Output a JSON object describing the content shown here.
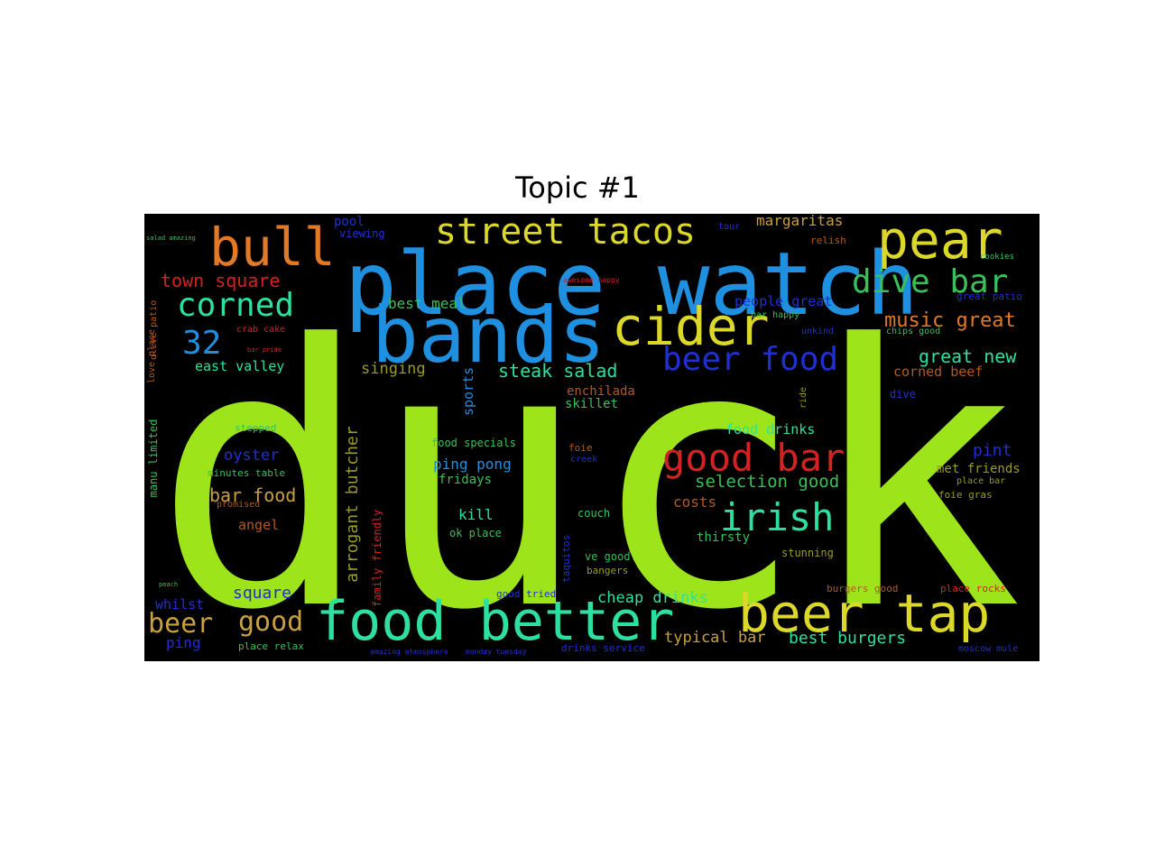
{
  "title": "Topic #1",
  "colors": {
    "lime": "#9de51a",
    "blue": "#1f8fe0",
    "orange": "#e07a28",
    "yellow": "#dcd82a",
    "teal": "#2ee0a0",
    "red": "#d42222",
    "navy": "#2030d0",
    "olive": "#9a9a2a",
    "green": "#3bbf5a",
    "brown": "#b05a20",
    "tan": "#c7a040"
  },
  "words": [
    {
      "id": "w-duck",
      "text": "duck",
      "color": "lime"
    },
    {
      "id": "w-place-watch",
      "text": "place watch",
      "color": "blue"
    },
    {
      "id": "w-bands",
      "text": "bands",
      "color": "blue"
    },
    {
      "id": "w-bull",
      "text": "bull",
      "color": "orange"
    },
    {
      "id": "w-pear",
      "text": "pear",
      "color": "yellow"
    },
    {
      "id": "w-street-tacos",
      "text": "street tacos",
      "color": "yellow"
    },
    {
      "id": "w-cider",
      "text": "cider",
      "color": "yellow"
    },
    {
      "id": "w-food-better",
      "text": "food better",
      "color": "teal"
    },
    {
      "id": "w-beer-tap",
      "text": "beer tap",
      "color": "yellow"
    },
    {
      "id": "w-dive-bar",
      "text": "dive bar",
      "color": "green"
    },
    {
      "id": "w-corned",
      "text": "corned",
      "color": "teal"
    },
    {
      "id": "w-32",
      "text": "32",
      "color": "blue"
    },
    {
      "id": "w-beer-food",
      "text": "beer food",
      "color": "navy"
    },
    {
      "id": "w-good-bar",
      "text": "good bar",
      "color": "red"
    },
    {
      "id": "w-irish",
      "text": "irish",
      "color": "teal"
    },
    {
      "id": "w-music-great",
      "text": "music great",
      "color": "orange"
    },
    {
      "id": "w-great-new",
      "text": "great new",
      "color": "teal"
    },
    {
      "id": "w-town-square",
      "text": "town square",
      "color": "red"
    },
    {
      "id": "w-margaritas",
      "text": "margaritas",
      "color": "tan"
    },
    {
      "id": "w-pool",
      "text": "pool",
      "color": "navy"
    },
    {
      "id": "w-viewing",
      "text": "viewing",
      "color": "navy"
    },
    {
      "id": "w-relish",
      "text": "relish",
      "color": "brown"
    },
    {
      "id": "w-tour",
      "text": "tour",
      "color": "navy"
    },
    {
      "id": "w-best-meal",
      "text": "best meal",
      "color": "green"
    },
    {
      "id": "w-people-great",
      "text": "people great",
      "color": "navy"
    },
    {
      "id": "w-bar-happy",
      "text": "bar happy",
      "color": "green"
    },
    {
      "id": "w-unkind",
      "text": "unkind",
      "color": "navy"
    },
    {
      "id": "w-chips-good",
      "text": "chips good",
      "color": "green"
    },
    {
      "id": "w-corned-beef",
      "text": "corned beef",
      "color": "brown"
    },
    {
      "id": "w-east-valley",
      "text": "east valley",
      "color": "teal"
    },
    {
      "id": "w-singing",
      "text": "singing",
      "color": "olive"
    },
    {
      "id": "w-steak-salad",
      "text": "steak salad",
      "color": "teal"
    },
    {
      "id": "w-sports",
      "text": "sports",
      "color": "blue"
    },
    {
      "id": "w-enchilada",
      "text": "enchilada",
      "color": "brown"
    },
    {
      "id": "w-skillet",
      "text": "skillet",
      "color": "green"
    },
    {
      "id": "w-dive",
      "text": "dive",
      "color": "navy"
    },
    {
      "id": "w-crab-cake",
      "text": "crab cake",
      "color": "red"
    },
    {
      "id": "w-olive-patio",
      "text": "olive patio",
      "color": "brown"
    },
    {
      "id": "w-love-place",
      "text": "love place",
      "color": "brown"
    },
    {
      "id": "w-food-drinks",
      "text": "food drinks",
      "color": "teal"
    },
    {
      "id": "w-pint",
      "text": "pint",
      "color": "navy"
    },
    {
      "id": "w-met-friends",
      "text": "met friends",
      "color": "olive"
    },
    {
      "id": "w-oyster",
      "text": "oyster",
      "color": "navy"
    },
    {
      "id": "w-arrogant-butcher",
      "text": "arrogant butcher",
      "color": "olive"
    },
    {
      "id": "w-food-specials",
      "text": "food specials",
      "color": "green"
    },
    {
      "id": "w-ping-pong",
      "text": "ping pong",
      "color": "blue"
    },
    {
      "id": "w-fridays",
      "text": "fridays",
      "color": "green"
    },
    {
      "id": "w-bar-food",
      "text": "bar food",
      "color": "tan"
    },
    {
      "id": "w-selection-good",
      "text": "selection good",
      "color": "green"
    },
    {
      "id": "w-costs",
      "text": "costs",
      "color": "brown"
    },
    {
      "id": "w-angel",
      "text": "angel",
      "color": "brown"
    },
    {
      "id": "w-kill",
      "text": "kill",
      "color": "teal"
    },
    {
      "id": "w-ok-place",
      "text": "ok place",
      "color": "green"
    },
    {
      "id": "w-couch",
      "text": "couch",
      "color": "green"
    },
    {
      "id": "w-thirsty",
      "text": "thirsty",
      "color": "green"
    },
    {
      "id": "w-foie-gras",
      "text": "foie gras",
      "color": "olive"
    },
    {
      "id": "w-place-bar",
      "text": "place bar",
      "color": "olive"
    },
    {
      "id": "w-manu-limited",
      "text": "manu limited",
      "color": "green"
    },
    {
      "id": "w-minutes-table",
      "text": "minutes table",
      "color": "green"
    },
    {
      "id": "w-stepped",
      "text": "stepped",
      "color": "green"
    },
    {
      "id": "w-promised",
      "text": "promised",
      "color": "brown"
    },
    {
      "id": "w-family-friendly",
      "text": "family friendly",
      "color": "red"
    },
    {
      "id": "w-square",
      "text": "square",
      "color": "navy"
    },
    {
      "id": "w-whilst",
      "text": "whilst",
      "color": "navy"
    },
    {
      "id": "w-cheap-drinks",
      "text": "cheap drinks",
      "color": "teal"
    },
    {
      "id": "w-good-tried",
      "text": "good tried",
      "color": "navy"
    },
    {
      "id": "w-taquitos",
      "text": "taquitos",
      "color": "navy"
    },
    {
      "id": "w-ve-good",
      "text": "ve good",
      "color": "green"
    },
    {
      "id": "w-bangers",
      "text": "bangers",
      "color": "olive"
    },
    {
      "id": "w-stunning",
      "text": "stunning",
      "color": "olive"
    },
    {
      "id": "w-burgers-good",
      "text": "burgers good",
      "color": "brown"
    },
    {
      "id": "w-place-rocks",
      "text": "place rocks",
      "color": "red"
    },
    {
      "id": "w-beer",
      "text": "beer",
      "color": "tan"
    },
    {
      "id": "w-good",
      "text": "good",
      "color": "tan"
    },
    {
      "id": "w-ping",
      "text": "ping",
      "color": "navy"
    },
    {
      "id": "w-place-relax",
      "text": "place relax",
      "color": "green"
    },
    {
      "id": "w-amazing-atmosphere",
      "text": "amazing atmosphere",
      "color": "navy"
    },
    {
      "id": "w-monday-tuesday",
      "text": "monday tuesday",
      "color": "navy"
    },
    {
      "id": "w-drinks-service",
      "text": "drinks service",
      "color": "navy"
    },
    {
      "id": "w-typical-bar",
      "text": "typical bar",
      "color": "tan"
    },
    {
      "id": "w-best-burgers",
      "text": "best burgers",
      "color": "teal"
    },
    {
      "id": "w-moscow-mule",
      "text": "moscow mule",
      "color": "navy"
    },
    {
      "id": "w-awesome-happy",
      "text": "awesome happy",
      "color": "red"
    },
    {
      "id": "w-great-patio",
      "text": "great patio",
      "color": "navy"
    },
    {
      "id": "w-cookies",
      "text": "cookies",
      "color": "green"
    },
    {
      "id": "w-salad-amazing",
      "text": "salad amazing",
      "color": "green"
    },
    {
      "id": "w-foie",
      "text": "foie",
      "color": "brown"
    },
    {
      "id": "w-creek",
      "text": "creek",
      "color": "navy"
    },
    {
      "id": "w-ride",
      "text": "ride",
      "color": "olive"
    },
    {
      "id": "w-bar-pride",
      "text": "bar pride",
      "color": "red"
    },
    {
      "id": "w-peach",
      "text": "peach",
      "color": "green"
    }
  ]
}
